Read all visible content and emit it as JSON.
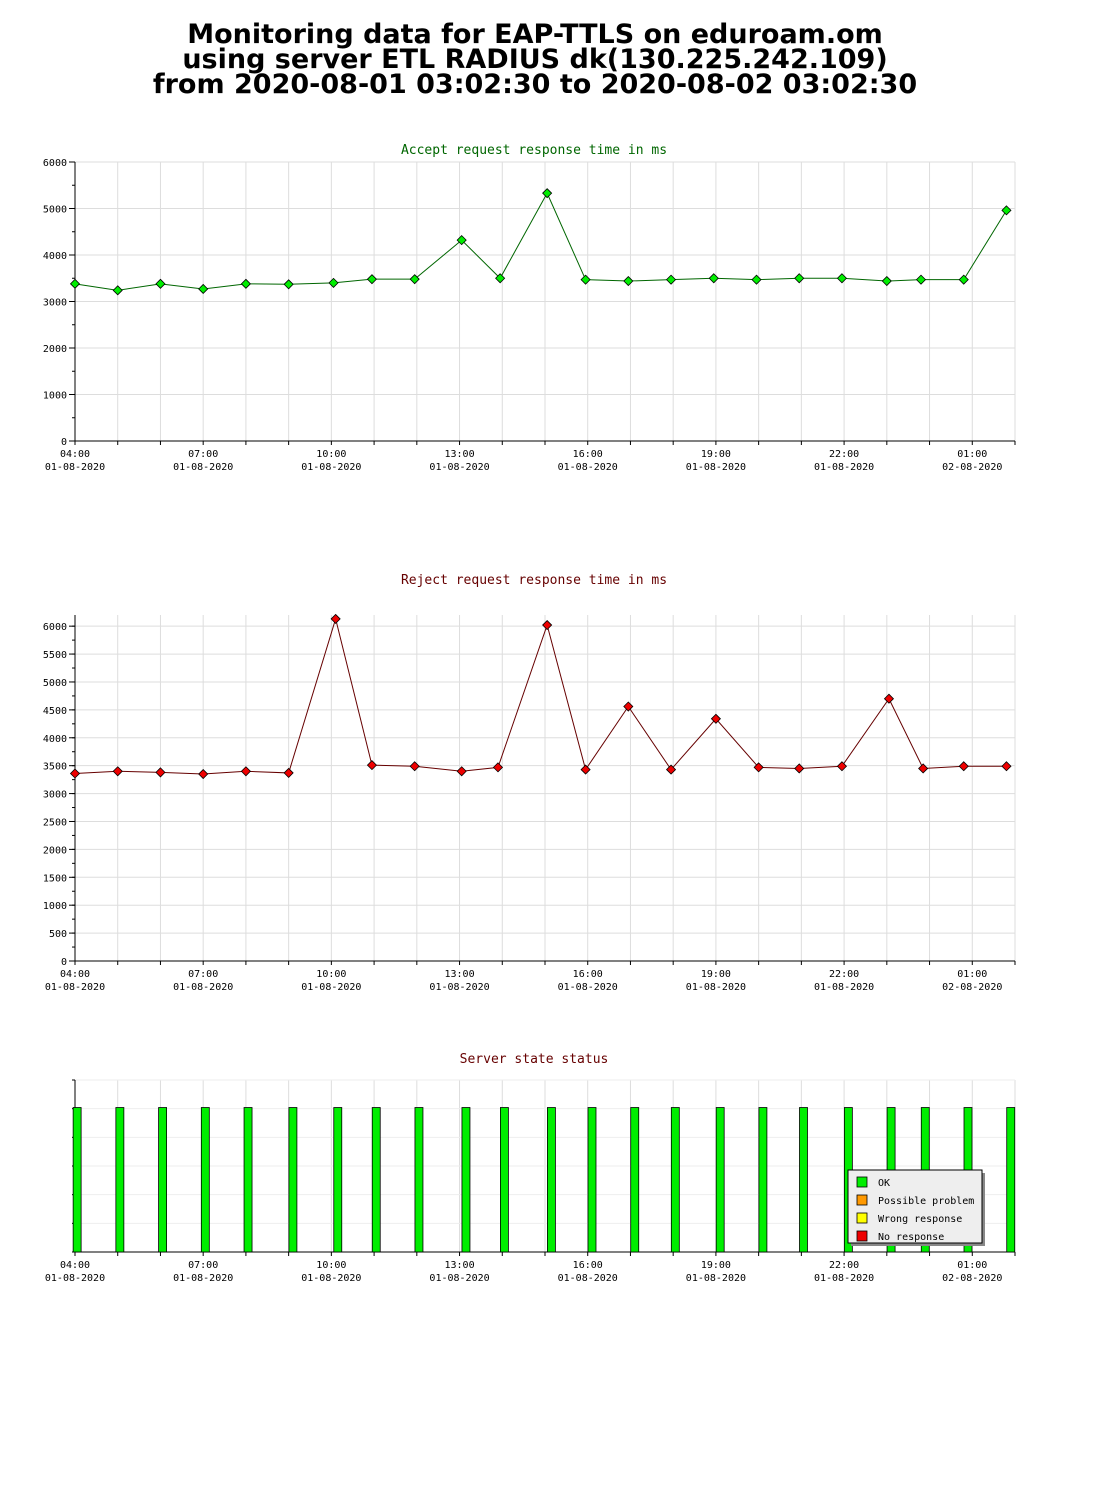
{
  "header": {
    "title_lines": [
      "Monitoring data for EAP-TTLS on eduroam.om",
      "using server ETL RADIUS dk(130.225.242.109)",
      "from 2020-08-01 03:02:30 to 2020-08-02 03:02:30"
    ]
  },
  "colors": {
    "accept_line": "#006600",
    "accept_marker": "#00ee00",
    "reject_line": "#660000",
    "reject_marker": "#ee0000",
    "status_ok": "#00ee00",
    "grid": "#dddddd"
  },
  "legend": {
    "items": [
      {
        "label": "OK",
        "color": "#00ee00"
      },
      {
        "label": "Possible problem",
        "color": "#ff9900"
      },
      {
        "label": "Wrong response",
        "color": "#ffff00"
      },
      {
        "label": "No response",
        "color": "#ee0000"
      }
    ]
  },
  "chart_data": [
    {
      "type": "line",
      "title": "Accept request response time in ms",
      "xlabel": "",
      "ylabel": "",
      "ylim": [
        0,
        6000
      ],
      "yticks": [
        0,
        1000,
        2000,
        3000,
        4000,
        5000,
        6000
      ],
      "x_tick_labels": [
        {
          "hour": 4,
          "time": "04:00",
          "date": "01-08-2020"
        },
        {
          "hour": 7,
          "time": "07:00",
          "date": "01-08-2020"
        },
        {
          "hour": 10,
          "time": "10:00",
          "date": "01-08-2020"
        },
        {
          "hour": 13,
          "time": "13:00",
          "date": "01-08-2020"
        },
        {
          "hour": 16,
          "time": "16:00",
          "date": "01-08-2020"
        },
        {
          "hour": 19,
          "time": "19:00",
          "date": "01-08-2020"
        },
        {
          "hour": 22,
          "time": "22:00",
          "date": "01-08-2020"
        },
        {
          "hour": 25,
          "time": "01:00",
          "date": "02-08-2020"
        }
      ],
      "grid": true,
      "series": [
        {
          "x": [
            4.0,
            5.0,
            6.0,
            7.0,
            8.0,
            9.0,
            10.05,
            10.95,
            11.95,
            13.05,
            13.95,
            15.05,
            15.95,
            16.95,
            17.95,
            18.95,
            19.95,
            20.95,
            21.95,
            23.0,
            23.8,
            24.8,
            25.8
          ],
          "y": [
            3380,
            3240,
            3380,
            3270,
            3380,
            3370,
            3400,
            3480,
            3480,
            4320,
            3500,
            5330,
            3470,
            3440,
            3470,
            3500,
            3470,
            3500,
            3500,
            3440,
            3470,
            3470,
            4960
          ]
        }
      ]
    },
    {
      "type": "line",
      "title": "Reject request response time in ms",
      "xlabel": "",
      "ylabel": "",
      "ylim": [
        0,
        6200
      ],
      "yticks": [
        0,
        500,
        1000,
        1500,
        2000,
        2500,
        3000,
        3500,
        4000,
        4500,
        5000,
        5500,
        6000
      ],
      "x_tick_labels": [
        {
          "hour": 4,
          "time": "04:00",
          "date": "01-08-2020"
        },
        {
          "hour": 7,
          "time": "07:00",
          "date": "01-08-2020"
        },
        {
          "hour": 10,
          "time": "10:00",
          "date": "01-08-2020"
        },
        {
          "hour": 13,
          "time": "13:00",
          "date": "01-08-2020"
        },
        {
          "hour": 16,
          "time": "16:00",
          "date": "01-08-2020"
        },
        {
          "hour": 19,
          "time": "19:00",
          "date": "01-08-2020"
        },
        {
          "hour": 22,
          "time": "22:00",
          "date": "01-08-2020"
        },
        {
          "hour": 25,
          "time": "01:00",
          "date": "02-08-2020"
        }
      ],
      "grid": true,
      "series": [
        {
          "x": [
            4.0,
            5.0,
            6.0,
            7.0,
            8.0,
            9.0,
            10.1,
            10.95,
            11.95,
            13.05,
            13.9,
            15.05,
            15.95,
            16.95,
            17.95,
            19.0,
            20.0,
            20.95,
            21.95,
            23.05,
            23.85,
            24.8,
            25.8
          ],
          "y": [
            3360,
            3400,
            3380,
            3350,
            3400,
            3370,
            6130,
            3510,
            3490,
            3400,
            3470,
            6020,
            3430,
            4560,
            3430,
            4340,
            3470,
            3450,
            3490,
            4700,
            3450,
            3490,
            3490
          ]
        }
      ]
    },
    {
      "type": "bar",
      "title": "Server state status",
      "xlabel": "",
      "ylabel": "",
      "ylim": [
        0,
        1
      ],
      "x_tick_labels": [
        {
          "hour": 4,
          "time": "04:00",
          "date": "01-08-2020"
        },
        {
          "hour": 7,
          "time": "07:00",
          "date": "01-08-2020"
        },
        {
          "hour": 10,
          "time": "10:00",
          "date": "01-08-2020"
        },
        {
          "hour": 13,
          "time": "13:00",
          "date": "01-08-2020"
        },
        {
          "hour": 16,
          "time": "16:00",
          "date": "01-08-2020"
        },
        {
          "hour": 19,
          "time": "19:00",
          "date": "01-08-2020"
        },
        {
          "hour": 22,
          "time": "22:00",
          "date": "01-08-2020"
        },
        {
          "hour": 25,
          "time": "01:00",
          "date": "02-08-2020"
        }
      ],
      "legend": "lower-right",
      "x": [
        4.05,
        5.05,
        6.05,
        7.05,
        8.05,
        9.1,
        10.15,
        11.05,
        12.05,
        13.15,
        14.05,
        15.15,
        16.1,
        17.1,
        18.05,
        19.1,
        20.1,
        21.05,
        22.1,
        23.1,
        23.9,
        24.9,
        25.9
      ],
      "status": [
        "OK",
        "OK",
        "OK",
        "OK",
        "OK",
        "OK",
        "OK",
        "OK",
        "OK",
        "OK",
        "OK",
        "OK",
        "OK",
        "OK",
        "OK",
        "OK",
        "OK",
        "OK",
        "OK",
        "OK",
        "OK",
        "OK",
        "OK"
      ],
      "values": [
        0.84,
        0.84,
        0.84,
        0.84,
        0.84,
        0.84,
        0.84,
        0.84,
        0.84,
        0.84,
        0.84,
        0.84,
        0.84,
        0.84,
        0.84,
        0.84,
        0.84,
        0.84,
        0.84,
        0.84,
        0.84,
        0.84,
        0.84
      ]
    }
  ]
}
